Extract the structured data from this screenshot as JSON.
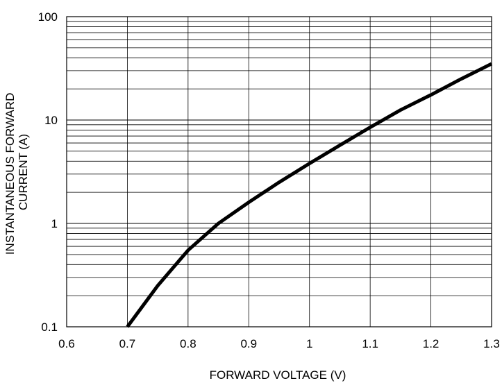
{
  "chart_data": {
    "type": "line",
    "title": "",
    "xlabel": "FORWARD VOLTAGE (V)",
    "ylabel_lines": [
      "INSTANTANEOUS FORWARD",
      "CURRENT (A)"
    ],
    "x_scale": "linear",
    "y_scale": "log",
    "xlim": [
      0.6,
      1.3
    ],
    "ylim": [
      0.1,
      100
    ],
    "x_ticks": [
      0.6,
      0.7,
      0.8,
      0.9,
      1.0,
      1.1,
      1.2,
      1.3
    ],
    "x_tick_labels": [
      "0.6",
      "0.7",
      "0.8",
      "0.9",
      "1",
      "1.1",
      "1.2",
      "1.3"
    ],
    "y_ticks": [
      0.1,
      1,
      10,
      100
    ],
    "y_tick_labels": [
      "0.1",
      "1",
      "10",
      "100"
    ],
    "grid": true,
    "line_color": "#000000",
    "series": [
      {
        "x": [
          0.7,
          0.75,
          0.8,
          0.85,
          0.9,
          0.95,
          1.0,
          1.05,
          1.1,
          1.15,
          1.2,
          1.25,
          1.3
        ],
        "y": [
          0.1,
          0.25,
          0.55,
          1.0,
          1.6,
          2.5,
          3.8,
          5.7,
          8.5,
          12.5,
          17.5,
          25,
          35
        ]
      }
    ]
  }
}
